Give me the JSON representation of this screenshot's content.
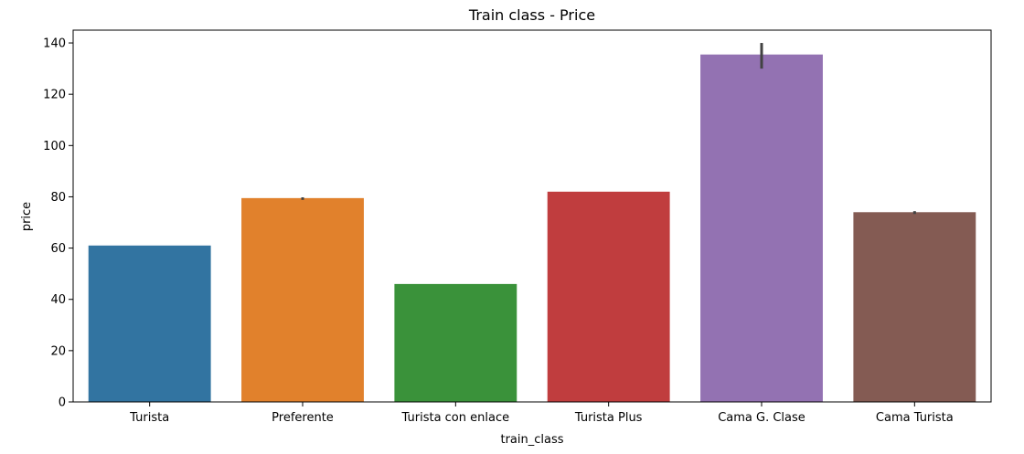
{
  "chart_data": {
    "type": "bar",
    "title": "Train class - Price",
    "xlabel": "train_class",
    "ylabel": "price",
    "categories": [
      "Turista",
      "Preferente",
      "Turista con enlace",
      "Turista Plus",
      "Cama G. Clase",
      "Cama Turista"
    ],
    "values": [
      61,
      79.5,
      46,
      82,
      135.5,
      74
    ],
    "error_bars": [
      [
        61,
        61
      ],
      [
        78.8,
        79.8
      ],
      [
        46,
        46
      ],
      [
        82,
        82
      ],
      [
        130,
        140
      ],
      [
        73.3,
        74.4
      ]
    ],
    "colors": [
      "#3274a1",
      "#e1812c",
      "#3a923a",
      "#c03d3e",
      "#9372b2",
      "#845b53"
    ],
    "ylim": [
      0,
      145
    ],
    "yticks": [
      0,
      20,
      40,
      60,
      80,
      100,
      120,
      140
    ],
    "grid": false,
    "legend": "none"
  }
}
